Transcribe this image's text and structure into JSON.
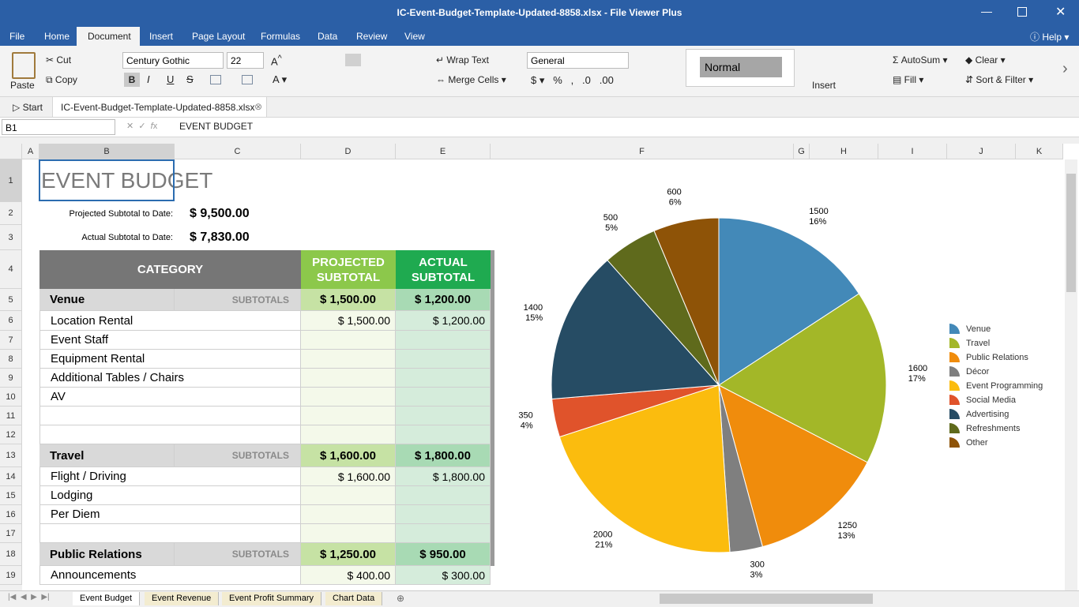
{
  "window": {
    "title": "IC-Event-Budget-Template-Updated-8858.xlsx - File Viewer Plus"
  },
  "menu": {
    "tabs": [
      "File",
      "Home",
      "Document",
      "Insert",
      "Page Layout",
      "Formulas",
      "Data",
      "Review",
      "View"
    ],
    "help": "Help"
  },
  "ribbon": {
    "paste": "Paste",
    "cut": "Cut",
    "copy": "Copy",
    "font": "Century Gothic",
    "size": "22",
    "wrap": "Wrap Text",
    "merge": "Merge Cells",
    "format": "General",
    "style": "Normal",
    "insert": "Insert",
    "autosum": "AutoSum",
    "fill": "Fill",
    "clear": "Clear",
    "sort": "Sort & Filter"
  },
  "doc_tabs": {
    "start": "Start",
    "file": "IC-Event-Budget-Template-Updated-8858.xlsx"
  },
  "formula_bar": {
    "cell": "B1",
    "content": "EVENT BUDGET"
  },
  "sheet": {
    "columns": [
      "A",
      "B",
      "C",
      "D",
      "E",
      "F",
      "G",
      "H",
      "I",
      "J",
      "K"
    ],
    "row_numbers": [
      1,
      2,
      3,
      4,
      5,
      6,
      7,
      8,
      9,
      10,
      11,
      12,
      13,
      14,
      15,
      16,
      17,
      18,
      19
    ],
    "title": "EVENT BUDGET",
    "projected_label": "Projected Subtotal to Date:",
    "projected_value": "$ 9,500.00",
    "actual_label": "Actual Subtotal to Date:",
    "actual_value": "$ 7,830.00",
    "header": {
      "category": "CATEGORY",
      "projected": "PROJECTED SUBTOTAL",
      "actual": "ACTUAL SUBTOTAL"
    },
    "sections": [
      {
        "name": "Venue",
        "subtotals": "SUBTOTALS",
        "projected": "$ 1,500.00",
        "actual": "$ 1,200.00",
        "items": [
          {
            "name": "Location Rental",
            "projected": "$ 1,500.00",
            "actual": "$ 1,200.00"
          },
          {
            "name": "Event Staff"
          },
          {
            "name": "Equipment Rental"
          },
          {
            "name": "Additional Tables / Chairs"
          },
          {
            "name": "AV"
          }
        ]
      },
      {
        "name": "Travel",
        "subtotals": "SUBTOTALS",
        "projected": "$ 1,600.00",
        "actual": "$ 1,800.00",
        "items": [
          {
            "name": "Flight / Driving",
            "projected": "$ 1,600.00",
            "actual": "$ 1,800.00"
          },
          {
            "name": "Lodging"
          },
          {
            "name": "Per Diem"
          }
        ]
      },
      {
        "name": "Public Relations",
        "subtotals": "SUBTOTALS",
        "projected": "$ 1,250.00",
        "actual": "$ 950.00",
        "items": [
          {
            "name": "Announcements",
            "projected": "$ 400.00",
            "actual": "$ 300.00"
          }
        ]
      }
    ]
  },
  "chart_data": {
    "type": "pie",
    "categories": [
      "Venue",
      "Travel",
      "Public Relations",
      "Décor",
      "Event Programming",
      "Social Media",
      "Advertising",
      "Refreshments",
      "Other"
    ],
    "values": [
      1500,
      1600,
      1250,
      300,
      2000,
      350,
      1400,
      500,
      600
    ],
    "percents": [
      16,
      17,
      13,
      3,
      21,
      4,
      15,
      5,
      6
    ],
    "colors": [
      "#4389b8",
      "#a3b728",
      "#f08c0c",
      "#7f7f7f",
      "#fbbc0e",
      "#e0532b",
      "#264c64",
      "#5f6a1c",
      "#8e5307"
    ],
    "legend": "right"
  },
  "sheet_tabs": [
    "Event Budget",
    "Event Revenue",
    "Event Profit Summary",
    "Chart Data"
  ]
}
